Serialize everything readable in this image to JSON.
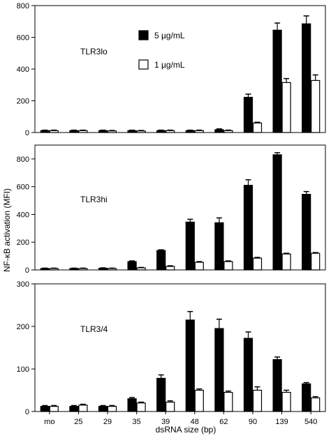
{
  "chart_data": {
    "type": "bar",
    "categories": [
      "mo",
      "25",
      "29",
      "35",
      "39",
      "48",
      "62",
      "90",
      "139",
      "540"
    ],
    "xlabel": "dsRNA size (bp)",
    "ylabel": "NF-κB activation (MFI)",
    "legend": {
      "placement": "top-center of first panel",
      "entries": [
        {
          "name": "5 µg/mL",
          "color": "#000000"
        },
        {
          "name": "1 µg/mL",
          "color": "#ffffff"
        }
      ]
    },
    "grid": false,
    "panels": [
      {
        "label": "TLR3lo",
        "ylim": [
          0,
          800
        ],
        "yticks": [
          0,
          200,
          400,
          600,
          800
        ],
        "series": [
          {
            "name": "5 µg/mL",
            "values": [
              12,
              12,
              12,
              12,
              12,
              12,
              18,
              222,
              645,
              685
            ],
            "errors": [
              3,
              3,
              3,
              3,
              3,
              3,
              5,
              20,
              45,
              50
            ]
          },
          {
            "name": "1 µg/mL",
            "values": [
              12,
              12,
              10,
              10,
              12,
              12,
              12,
              60,
              315,
              328
            ],
            "errors": [
              3,
              3,
              3,
              3,
              3,
              3,
              3,
              5,
              25,
              35
            ]
          }
        ]
      },
      {
        "label": "TLR3hi",
        "ylim": [
          0,
          900
        ],
        "yticks": [
          0,
          200,
          400,
          600,
          800
        ],
        "series": [
          {
            "name": "5 µg/mL",
            "values": [
              10,
              10,
              12,
              60,
              140,
              345,
              340,
              610,
              830,
              545
            ],
            "errors": [
              3,
              3,
              3,
              5,
              5,
              20,
              35,
              40,
              15,
              20
            ]
          },
          {
            "name": "1 µg/mL",
            "values": [
              10,
              10,
              10,
              15,
              25,
              55,
              60,
              85,
              115,
              120
            ],
            "errors": [
              3,
              3,
              3,
              3,
              5,
              5,
              5,
              5,
              5,
              5
            ]
          }
        ]
      },
      {
        "label": "TLR3/4",
        "ylim": [
          0,
          300
        ],
        "yticks": [
          0,
          100,
          200,
          300
        ],
        "series": [
          {
            "name": "5 µg/mL",
            "values": [
              12,
              12,
              12,
              30,
              78,
              215,
              195,
              172,
              122,
              65
            ],
            "errors": [
              2,
              2,
              2,
              3,
              8,
              20,
              22,
              15,
              6,
              3
            ]
          },
          {
            "name": "1 µg/mL",
            "values": [
              12,
              15,
              12,
              20,
              22,
              50,
              45,
              50,
              45,
              32
            ],
            "errors": [
              2,
              2,
              2,
              2,
              3,
              3,
              3,
              8,
              5,
              3
            ]
          }
        ]
      }
    ]
  }
}
